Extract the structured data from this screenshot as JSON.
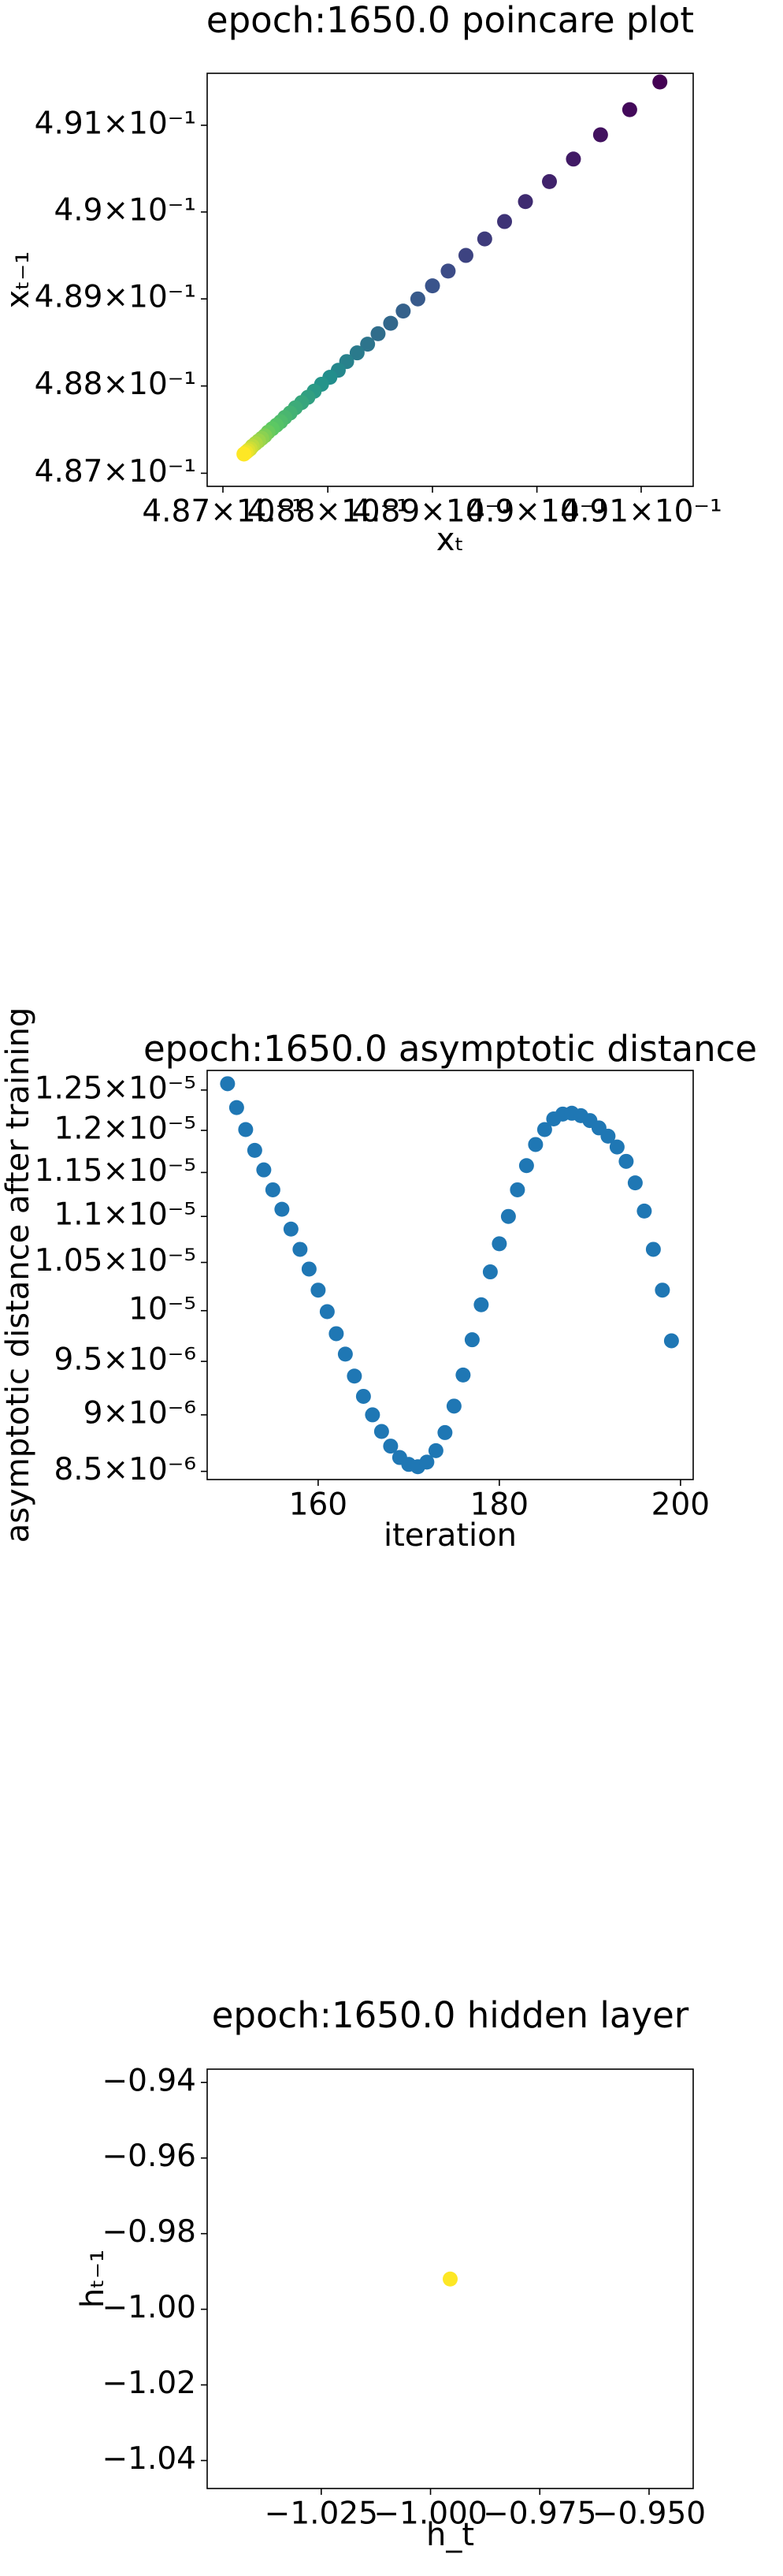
{
  "chart_data": [
    {
      "type": "scatter",
      "title": "epoch:1650.0 poincare plot",
      "x_label": "xₜ",
      "y_label": "xₜ₋₁",
      "x": [
        0.49118,
        0.49089,
        0.49061,
        0.49035,
        0.49012,
        0.48989,
        0.48969,
        0.4895,
        0.48932,
        0.48915,
        0.489,
        0.48886,
        0.48872,
        0.4886,
        0.48848,
        0.48838,
        0.48828,
        0.48818,
        0.4881,
        0.48802,
        0.48794,
        0.48787,
        0.48781,
        0.48775,
        0.48769,
        0.48764,
        0.48759,
        0.48755,
        0.48751,
        0.48747,
        0.48743,
        0.4874,
        0.48737,
        0.48734,
        0.48731,
        0.48728,
        0.48726,
        0.48724,
        0.48722,
        0.4872
      ],
      "values": [
        0.4915,
        0.49118,
        0.49089,
        0.49061,
        0.49035,
        0.49012,
        0.48989,
        0.48969,
        0.4895,
        0.48932,
        0.48915,
        0.489,
        0.48886,
        0.48872,
        0.4886,
        0.48848,
        0.48838,
        0.48828,
        0.48818,
        0.4881,
        0.48802,
        0.48794,
        0.48787,
        0.48781,
        0.48775,
        0.48769,
        0.48764,
        0.48759,
        0.48755,
        0.48751,
        0.48747,
        0.48743,
        0.4874,
        0.48737,
        0.48734,
        0.48731,
        0.48728,
        0.48726,
        0.48724,
        0.48722
      ],
      "colormap": "viridis",
      "xscale": "log",
      "yscale": "log",
      "xlim": [
        0.48685,
        0.4915
      ],
      "ylim": [
        0.48685,
        0.4916
      ],
      "xticks": [
        {
          "value": 0.487,
          "label": "4.87×10⁻¹"
        },
        {
          "value": 0.488,
          "label": "4.88×10⁻¹"
        },
        {
          "value": 0.489,
          "label": "4.89×10⁻¹"
        },
        {
          "value": 0.49,
          "label": "4.9×10⁻¹"
        },
        {
          "value": 0.491,
          "label": "4.91×10⁻¹"
        }
      ],
      "yticks": [
        {
          "value": 0.487,
          "label": "4.87×10⁻¹"
        },
        {
          "value": 0.488,
          "label": "4.88×10⁻¹"
        },
        {
          "value": 0.489,
          "label": "4.89×10⁻¹"
        },
        {
          "value": 0.49,
          "label": "4.9×10⁻¹"
        },
        {
          "value": 0.491,
          "label": "4.91×10⁻¹"
        }
      ]
    },
    {
      "type": "scatter",
      "title": "epoch:1650.0 asymptotic distance",
      "x_label": "iteration",
      "y_label": "asymptotic distance after training",
      "x": [
        150,
        151,
        152,
        153,
        154,
        155,
        156,
        157,
        158,
        159,
        160,
        161,
        162,
        163,
        164,
        165,
        166,
        167,
        168,
        169,
        170,
        171,
        172,
        173,
        174,
        175,
        176,
        177,
        178,
        179,
        180,
        181,
        182,
        183,
        184,
        185,
        186,
        187,
        188,
        189,
        190,
        191,
        192,
        193,
        194,
        195,
        196,
        197,
        198,
        199
      ],
      "values": [
        1.258e-05,
        1.228e-05,
        1.201e-05,
        1.176e-05,
        1.153e-05,
        1.13e-05,
        1.108e-05,
        1.086e-05,
        1.064e-05,
        1.043e-05,
        1.021e-05,
        9.99e-06,
        9.77e-06,
        9.57e-06,
        9.36e-06,
        9.17e-06,
        9e-06,
        8.85e-06,
        8.72e-06,
        8.62e-06,
        8.56e-06,
        8.54e-06,
        8.58e-06,
        8.68e-06,
        8.84e-06,
        9.08e-06,
        9.37e-06,
        9.71e-06,
        1.006e-05,
        1.04e-05,
        1.07e-05,
        1.1e-05,
        1.13e-05,
        1.158e-05,
        1.183e-05,
        1.201e-05,
        1.214e-05,
        1.22e-05,
        1.221e-05,
        1.218e-05,
        1.212e-05,
        1.203e-05,
        1.193e-05,
        1.18e-05,
        1.163e-05,
        1.138e-05,
        1.106e-05,
        1.064e-05,
        1.021e-05,
        9.7e-06
      ],
      "color": "#1f77b4",
      "yscale": "log",
      "xlim": [
        147.75,
        201.4
      ],
      "ylim": [
        8.43e-06,
        1.275e-05
      ],
      "xticks": [
        160,
        180,
        200
      ],
      "yticks": [
        {
          "value": 8.5e-06,
          "label": "8.5×10⁻⁶"
        },
        {
          "value": 9e-06,
          "label": "9×10⁻⁶"
        },
        {
          "value": 9.5e-06,
          "label": "9.5×10⁻⁶"
        },
        {
          "value": 1e-05,
          "label": "10⁻⁵"
        },
        {
          "value": 1.05e-05,
          "label": "1.05×10⁻⁵"
        },
        {
          "value": 1.1e-05,
          "label": "1.1×10⁻⁵"
        },
        {
          "value": 1.15e-05,
          "label": "1.15×10⁻⁵"
        },
        {
          "value": 1.2e-05,
          "label": "1.2×10⁻⁵"
        },
        {
          "value": 1.25e-05,
          "label": "1.25×10⁻⁵"
        }
      ]
    },
    {
      "type": "scatter",
      "title": "epoch:1650.0 hidden layer",
      "x_label": "h_t",
      "y_label": "hₜ₋₁",
      "x": [
        -0.9955
      ],
      "values": [
        -0.992
      ],
      "color": "#fde725",
      "xlim": [
        -1.0511,
        -0.9399
      ],
      "ylim": [
        -1.0474,
        -0.9365
      ],
      "xticks": [
        {
          "value": -1.025,
          "label": "−1.025"
        },
        {
          "value": -1.0,
          "label": "−1.000"
        },
        {
          "value": -0.975,
          "label": "−0.975"
        },
        {
          "value": -0.95,
          "label": "−0.950"
        }
      ],
      "yticks": [
        {
          "value": -1.04,
          "label": "−1.04"
        },
        {
          "value": -1.02,
          "label": "−1.02"
        },
        {
          "value": -1.0,
          "label": "−1.00"
        },
        {
          "value": -0.98,
          "label": "−0.98"
        },
        {
          "value": -0.96,
          "label": "−0.96"
        },
        {
          "value": -0.94,
          "label": "−0.94"
        }
      ]
    }
  ]
}
